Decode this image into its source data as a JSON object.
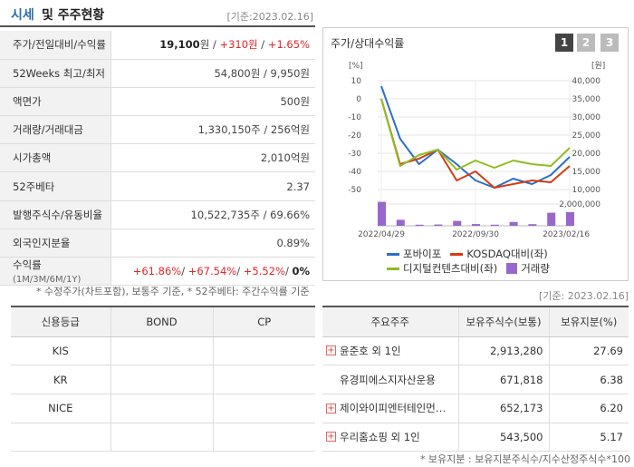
{
  "header": {
    "title_a": "시세",
    "title_b": "및 주주현황",
    "basis": "[기준:2023.02.16]"
  },
  "price_table": [
    {
      "key": "주가/전일대비/수익률",
      "value_html": "price"
    },
    {
      "key": "52Weeks 최고/최저",
      "value": "54,800원 / 9,950원"
    },
    {
      "key": "액면가",
      "value": "500원"
    },
    {
      "key": "거래량/거래대금",
      "value": "1,330,150주 / 256억원"
    },
    {
      "key": "시가총액",
      "value": "2,010억원"
    },
    {
      "key": "52주베타",
      "value": "2.37"
    },
    {
      "key": "발행주식수/유동비율",
      "value": "10,522,735주 / 69.66%"
    },
    {
      "key": "외국인지분율",
      "value": "0.89%"
    },
    {
      "key": "수익률",
      "key_sub": "(1M/3M/6M/1Y)"
    }
  ],
  "price": {
    "close": "19,100",
    "unit": "원",
    "sep": " / ",
    "change": "+310원",
    "sep2": " / ",
    "rate": "+1.65%"
  },
  "returns": {
    "r1": "+61.86%",
    "r3": "+67.54%",
    "r6": "+5.52%",
    "r12": "0%"
  },
  "note1": "* 수정주가(차트포함), 보통주 기준, * 52주베타: 주간수익률 기준",
  "chart_panel": {
    "title": "주가/상대수익률",
    "buttons": [
      "1",
      "2",
      "3"
    ]
  },
  "chart_data": {
    "type": "line",
    "title": "주가/상대수익률",
    "left_axis_unit": "[%]",
    "right_axis_unit": "[원]",
    "left_ticks": [
      "10",
      "0",
      "-10",
      "-20",
      "-30",
      "-40",
      "-50"
    ],
    "right_ticks": [
      "40,000",
      "35,000",
      "30,000",
      "25,000",
      "20,000",
      "15,000",
      "10,000"
    ],
    "volume_tick": "2,000,000",
    "x_labels": [
      "2022/04/29",
      "2022/09/30",
      "2023/02/16"
    ],
    "ylim_left": [
      -50,
      10
    ],
    "ylim_right": [
      10000,
      40000
    ],
    "series": [
      {
        "name": "포바이포",
        "color": "#2a6fc9",
        "values": [
          7,
          -22,
          -36,
          -28,
          -36,
          -45,
          -49,
          -44,
          -47,
          -42,
          -32
        ]
      },
      {
        "name": "KOSDAQ대비(좌)",
        "color": "#d23c14",
        "values": [
          0,
          -36,
          -33,
          -28,
          -45,
          -40,
          -49,
          -47,
          -45,
          -46,
          -37
        ]
      },
      {
        "name": "디지털컨텐츠대비(좌)",
        "color": "#8fbc22",
        "values": [
          0,
          -37,
          -31,
          -28,
          -39,
          -34,
          -38,
          -34,
          -36,
          -37,
          -27
        ]
      }
    ],
    "volume": {
      "name": "거래량",
      "color": "#9966cc",
      "values": [
        2300000,
        550000,
        100000,
        120000,
        450000,
        160000,
        100000,
        350000,
        150000,
        1200000,
        1250000
      ]
    }
  },
  "basis2": "[기준: 2023.02.16]",
  "credit": {
    "headers": [
      "신용등급",
      "BOND",
      "CP"
    ],
    "rows": [
      [
        "KIS",
        "",
        ""
      ],
      [
        "KR",
        "",
        ""
      ],
      [
        "NICE",
        "",
        ""
      ]
    ]
  },
  "holders": {
    "headers": [
      "주요주주",
      "보유주식수(보통)",
      "보유지분(%)"
    ],
    "rows": [
      {
        "plus": true,
        "name": "윤준호 외 1인",
        "shares": "2,913,280",
        "pct": "27.69"
      },
      {
        "plus": false,
        "name": "유경피에스지자산운용",
        "shares": "671,818",
        "pct": "6.38"
      },
      {
        "plus": true,
        "name": "제이와이피엔터테인먼…",
        "shares": "652,173",
        "pct": "6.20"
      },
      {
        "plus": true,
        "name": "우리홈쇼핑 외 1인",
        "shares": "543,500",
        "pct": "5.17"
      }
    ]
  },
  "note2": "* 보유지분 : 보유지분주식수/지수산정주식수*100"
}
